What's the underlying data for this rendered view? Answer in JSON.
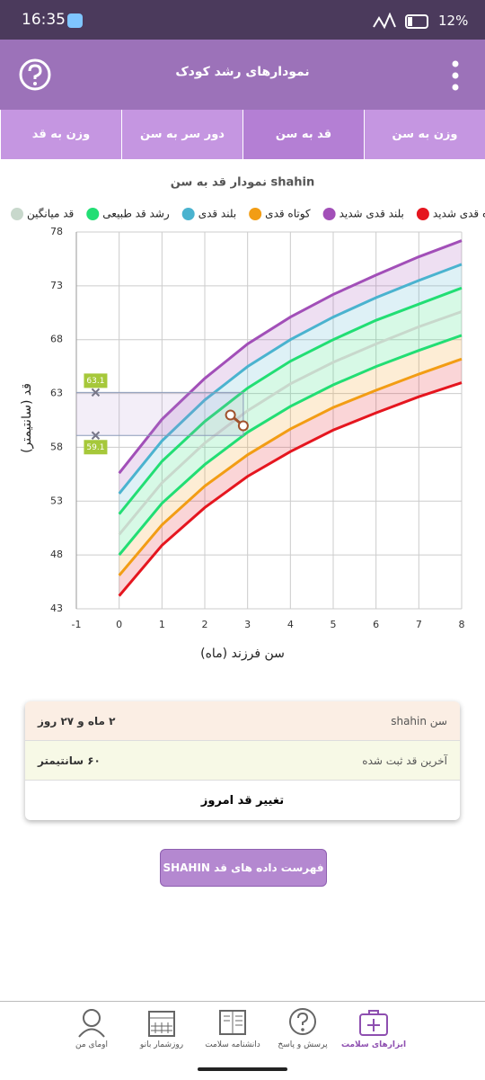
{
  "status": {
    "time": "16:35",
    "battery": "12%"
  },
  "header": {
    "title": "نمودارهای رشد کودک"
  },
  "tabs": [
    "وزن به قد",
    "دور سر به سن",
    "قد به سن",
    "وزن به سن"
  ],
  "chart_data": {
    "type": "line",
    "title": "نمودار قد به سن shahin",
    "x_label": "سن فرزند (ماه)",
    "y_label": "قد (سانتیمتر)",
    "x": [
      0,
      1,
      2,
      3,
      4,
      5,
      6,
      7,
      8
    ],
    "series": [
      {
        "name": "کوتاه قدی شدید",
        "color": "#e5161f",
        "values": [
          44.2,
          48.9,
          52.4,
          55.3,
          57.6,
          59.6,
          61.2,
          62.7,
          64.0
        ]
      },
      {
        "name": "بلند قدی شدید",
        "color": "#a24fb8",
        "values": [
          55.6,
          60.6,
          64.4,
          67.6,
          70.1,
          72.2,
          74.0,
          75.7,
          77.2
        ]
      },
      {
        "name": "کوتاه قدی",
        "color": "#f29d14",
        "values": [
          46.1,
          50.8,
          54.4,
          57.3,
          59.7,
          61.7,
          63.3,
          64.8,
          66.2
        ]
      },
      {
        "name": "بلند قدی",
        "color": "#4ab3cf",
        "values": [
          53.7,
          58.6,
          62.4,
          65.5,
          68.0,
          70.1,
          71.9,
          73.5,
          75.0
        ]
      },
      {
        "name": "رشد قد طبیعی",
        "color": "#22de74",
        "low": [
          48.0,
          52.8,
          56.4,
          59.4,
          61.8,
          63.8,
          65.5,
          67.0,
          68.4
        ],
        "high": [
          51.8,
          56.7,
          60.4,
          63.5,
          66.0,
          68.0,
          69.8,
          71.3,
          72.8
        ]
      },
      {
        "name": "قد میانگین",
        "color": "#c8d8cc",
        "values": [
          49.9,
          54.7,
          58.4,
          61.4,
          63.9,
          65.9,
          67.6,
          69.2,
          70.6
        ]
      }
    ],
    "points": {
      "x": [
        2.6,
        2.9
      ],
      "y": [
        61,
        60
      ],
      "color": "#a0522d"
    },
    "guides": [
      63.1,
      59.1
    ],
    "xlim": [
      -1,
      8
    ],
    "xticks": [
      -1,
      0,
      1,
      2,
      3,
      4,
      5,
      6,
      7,
      8
    ],
    "ylim": [
      43,
      78
    ],
    "yticks": [
      43,
      48,
      53,
      58,
      63,
      68,
      73,
      78
    ],
    "grid": true
  },
  "card": {
    "rows": [
      {
        "label": "سن shahin",
        "value": "۲ ماه و ۲۷ روز"
      },
      {
        "label": "آخرین قد ثبت شده",
        "value": "۶۰ سانتیمتر"
      }
    ],
    "action": "تغییر قد امروز"
  },
  "button": "فهرست داده های قد SHAHIN",
  "nav": [
    "اومای من",
    "روزشمار بانو",
    "دانشنامه سلامت",
    "پرسش و پاسخ",
    "ابزارهای سلامت"
  ]
}
